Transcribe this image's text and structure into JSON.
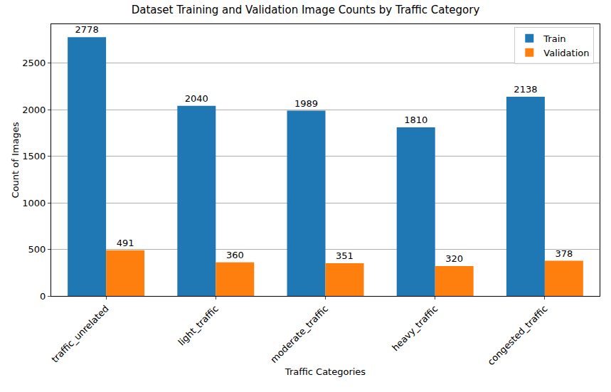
{
  "chart_data": {
    "type": "bar",
    "title": "Dataset Training and Validation Image Counts by Traffic Category",
    "x_label": "Traffic Categories",
    "y_label": "Count of Images",
    "categories": [
      "traffic_unrelated",
      "light_traffic",
      "moderate_traffic",
      "heavy_traffic",
      "congested_traffic"
    ],
    "series": [
      {
        "name": "Train",
        "color": "#1f77b4",
        "values": [
          2778,
          2040,
          1989,
          1810,
          2138
        ]
      },
      {
        "name": "Validation",
        "color": "#ff7f0e",
        "values": [
          491,
          360,
          351,
          320,
          378
        ]
      }
    ],
    "ylim": [
      0,
      2917
    ],
    "yticks": [
      0,
      500,
      1000,
      1500,
      2000,
      2500
    ],
    "grid": true,
    "legend": "upper right",
    "data_labels": true
  }
}
